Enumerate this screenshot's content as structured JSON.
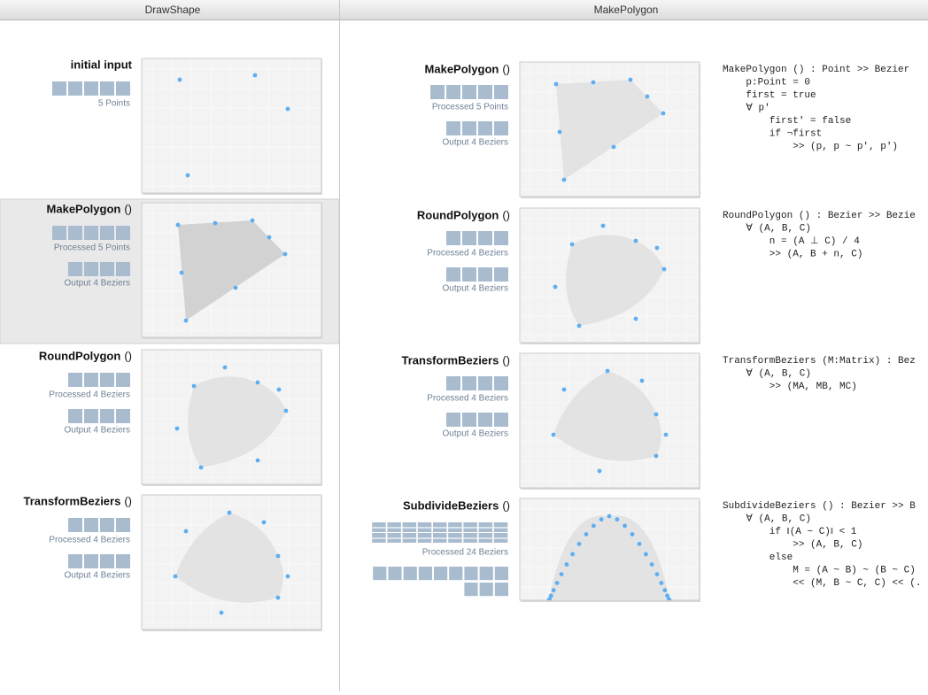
{
  "panes": [
    {
      "title": "DrawShape",
      "stages": [
        {
          "name": "initial input",
          "labels": [
            "5 Points"
          ]
        },
        {
          "name": "MakePolygon",
          "args": "()",
          "labels": [
            "Processed 5 Points",
            "Output 4 Beziers"
          ]
        },
        {
          "name": "RoundPolygon",
          "args": "()",
          "labels": [
            "Processed 4 Beziers",
            "Output 4 Beziers"
          ]
        },
        {
          "name": "TransformBeziers",
          "args": "()",
          "labels": [
            "Processed 4 Beziers",
            "Output 4 Beziers"
          ]
        }
      ]
    },
    {
      "title": "MakePolygon",
      "stages": [
        {
          "name": "MakePolygon",
          "args": "()",
          "labels": [
            "Processed 5 Points",
            "Output 4 Beziers"
          ],
          "code": [
            "MakePolygon () : Point >> Bezier",
            "    p:Point = 0",
            "    first = true",
            "    ∀ p'",
            "        first' = false",
            "        if ¬first",
            "            >> (p, p ~ p', p')"
          ]
        },
        {
          "name": "RoundPolygon",
          "args": "()",
          "labels": [
            "Processed 4 Beziers",
            "Output 4 Beziers"
          ],
          "code": [
            "RoundPolygon () : Bezier >> Bezie",
            "    ∀ (A, B, C)",
            "        n = (A ⊥ C) / 4",
            "        >> (A, B + n, C)"
          ]
        },
        {
          "name": "TransformBeziers",
          "args": "()",
          "labels": [
            "Processed 4 Beziers",
            "Output 4 Beziers"
          ],
          "code": [
            "TransformBeziers (M:Matrix) : Bez",
            "    ∀ (A, B, C)",
            "        >> (MA, MB, MC)"
          ]
        },
        {
          "name": "SubdivideBeziers",
          "args": "()",
          "labels": [
            "Processed 24 Beziers"
          ],
          "code": [
            "SubdivideBeziers () : Bezier >> B",
            "    ∀ (A, B, C)",
            "        if ‖(A − C)‖ < 1",
            "            >> (A, B, C)",
            "        else",
            "            M = (A ~ B) ~ (B ~ C)",
            "            << (M, B ~ C, C) << (."
          ]
        }
      ]
    }
  ]
}
